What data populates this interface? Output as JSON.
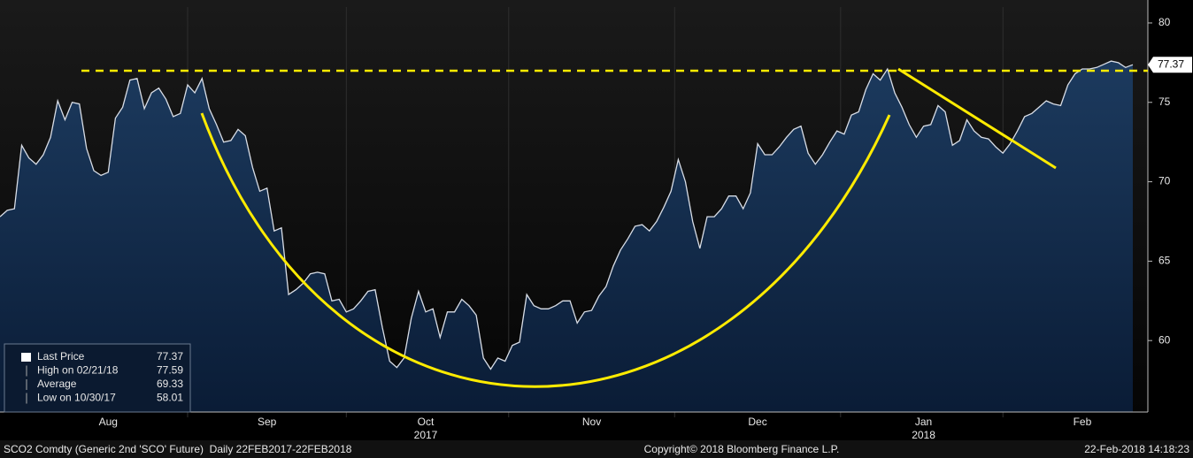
{
  "chart_data": {
    "type": "area",
    "categories": [
      null,
      null,
      null,
      null,
      null,
      null,
      null,
      null,
      null,
      null,
      null,
      null,
      null,
      null,
      null,
      "Aug",
      null,
      null,
      null,
      null,
      null,
      null,
      null,
      null,
      null,
      null,
      null,
      null,
      null,
      null,
      null,
      null,
      null,
      null,
      null,
      null,
      null,
      "Sep",
      null,
      null,
      null,
      null,
      null,
      null,
      null,
      null,
      null,
      null,
      null,
      null,
      null,
      null,
      null,
      null,
      null,
      null,
      null,
      null,
      null,
      "Oct",
      null,
      null,
      null,
      null,
      null,
      null,
      null,
      null,
      null,
      null,
      null,
      null,
      null,
      null,
      null,
      null,
      null,
      null,
      null,
      null,
      null,
      null,
      "Nov",
      null,
      null,
      null,
      null,
      null,
      null,
      null,
      null,
      null,
      null,
      null,
      null,
      null,
      null,
      null,
      null,
      null,
      null,
      null,
      null,
      null,
      null,
      "Dec",
      null,
      null,
      null,
      null,
      null,
      null,
      null,
      null,
      null,
      null,
      null,
      null,
      null,
      null,
      null,
      null,
      null,
      null,
      null,
      null,
      null,
      null,
      "Jan",
      null,
      null,
      null,
      null,
      null,
      null,
      null,
      null,
      null,
      null,
      null,
      null,
      null,
      null,
      null,
      null,
      null,
      null,
      null,
      null,
      null,
      "Feb",
      null,
      null,
      null,
      null,
      null,
      null,
      null
    ],
    "values": [
      67.8,
      68.2,
      68.3,
      72.3,
      71.5,
      71.1,
      71.7,
      72.8,
      75.1,
      73.9,
      75.0,
      74.9,
      72.1,
      70.7,
      70.4,
      70.6,
      74.0,
      74.7,
      76.4,
      76.5,
      74.6,
      75.6,
      75.9,
      75.2,
      74.1,
      74.3,
      76.1,
      75.6,
      76.5,
      74.6,
      73.6,
      72.5,
      72.6,
      73.3,
      72.9,
      70.9,
      69.4,
      69.6,
      66.9,
      67.1,
      62.9,
      63.2,
      63.6,
      64.2,
      64.3,
      64.2,
      62.5,
      62.6,
      61.8,
      62.0,
      62.5,
      63.1,
      63.2,
      60.8,
      58.7,
      58.3,
      58.9,
      61.4,
      63.1,
      61.8,
      62.0,
      60.2,
      61.8,
      61.8,
      62.6,
      62.2,
      61.6,
      58.9,
      58.2,
      58.9,
      58.7,
      59.7,
      59.9,
      62.9,
      62.2,
      62.0,
      62.0,
      62.2,
      62.5,
      62.5,
      61.1,
      61.8,
      61.9,
      62.8,
      63.4,
      64.7,
      65.7,
      66.4,
      67.2,
      67.3,
      66.9,
      67.5,
      68.4,
      69.4,
      71.4,
      70.0,
      67.5,
      65.8,
      67.8,
      67.8,
      68.3,
      69.1,
      69.1,
      68.3,
      69.3,
      72.4,
      71.7,
      71.7,
      72.2,
      72.8,
      73.3,
      73.5,
      71.8,
      71.1,
      71.7,
      72.5,
      73.2,
      73.0,
      74.2,
      74.4,
      75.8,
      76.8,
      76.4,
      77.1,
      75.6,
      74.7,
      73.6,
      72.8,
      73.5,
      73.6,
      74.8,
      74.4,
      72.3,
      72.6,
      73.9,
      73.2,
      72.8,
      72.7,
      72.2,
      71.8,
      72.4,
      73.2,
      74.1,
      74.3,
      74.7,
      75.1,
      74.9,
      74.8,
      76.1,
      76.8,
      77.1,
      77.1,
      77.2,
      77.4,
      77.6,
      77.5,
      77.2,
      77.37
    ],
    "color": "#d8dde6",
    "year_labels": [
      {
        "category": "Oct",
        "label": "2017"
      },
      {
        "category": "Jan",
        "label": "2018"
      }
    ],
    "ylim": [
      55.5,
      81
    ],
    "yticks": [
      60,
      65,
      70,
      75,
      80
    ],
    "legend_stats": [
      {
        "label": "Last Price",
        "value": 77.37
      },
      {
        "label": "High on 02/21/18",
        "value": 77.59
      },
      {
        "label": "Average",
        "value": 69.33
      },
      {
        "label": "Low on 10/30/17",
        "value": 58.01
      }
    ],
    "footer": {
      "left": "SCO2 Comdty (Generic 2nd 'SCO' Future)  Daily 22FEB2017-22FEB2018",
      "center": "Copyright© 2018 Bloomberg Finance L.P.",
      "right": "22-Feb-2018 14:18:23"
    }
  }
}
